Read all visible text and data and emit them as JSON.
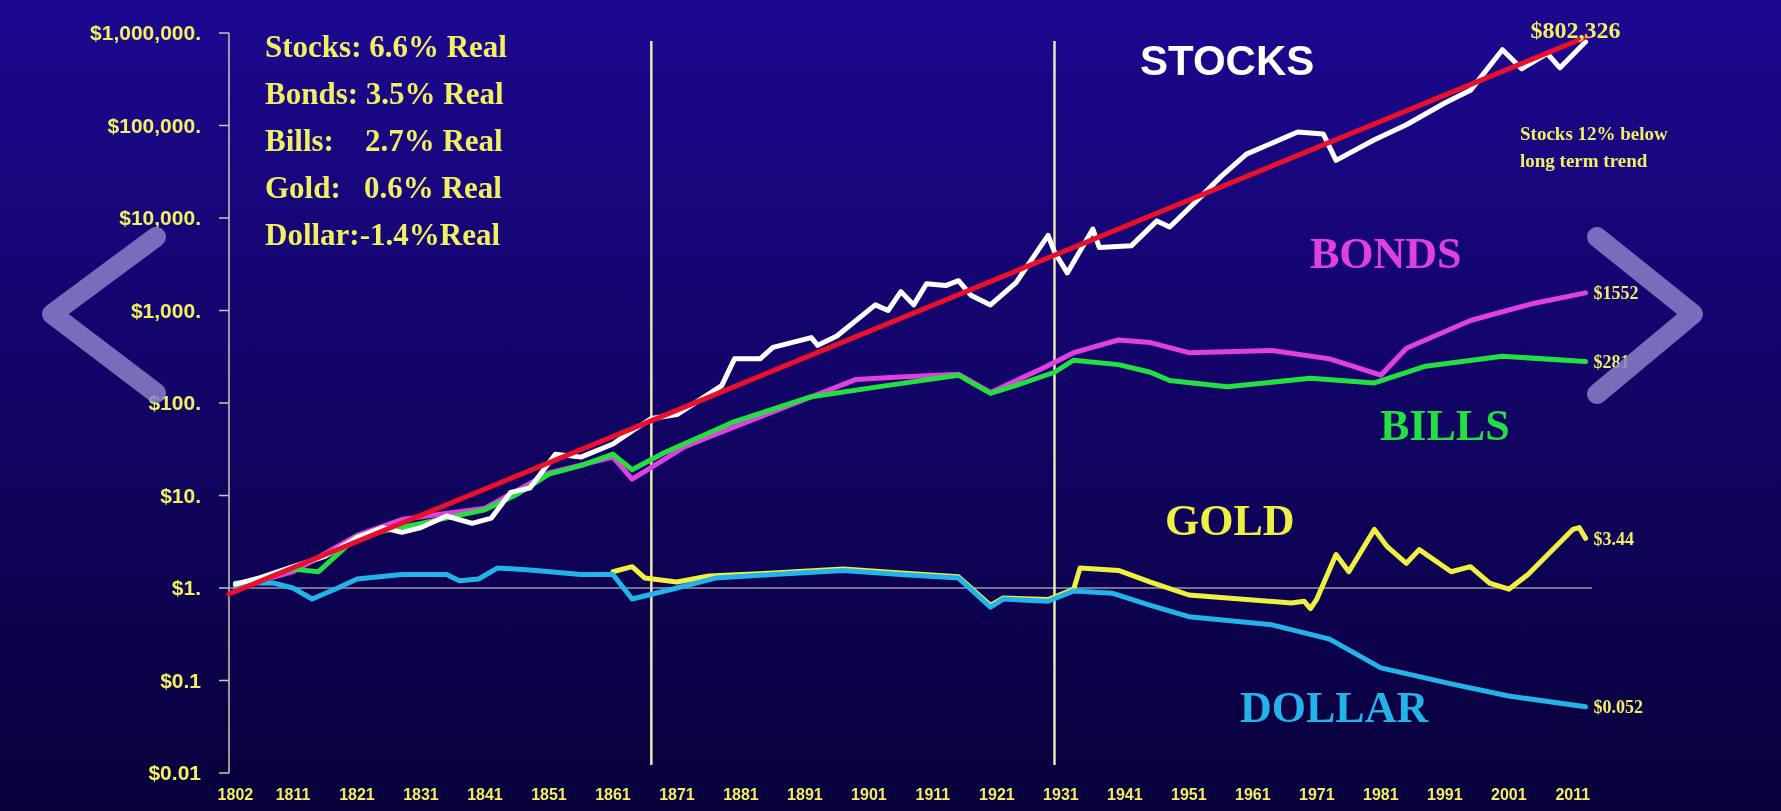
{
  "chart_data": {
    "type": "line",
    "log": "y",
    "xlim": [
      1801,
      2014
    ],
    "ylim": [
      0.01,
      1000000
    ],
    "xticks": [
      1802,
      1811,
      1821,
      1831,
      1841,
      1851,
      1861,
      1871,
      1881,
      1891,
      1901,
      1911,
      1921,
      1931,
      1941,
      1951,
      1961,
      1971,
      1981,
      1991,
      2001,
      2011
    ],
    "yticks": [
      {
        "value": 0.01,
        "label": "$0.01"
      },
      {
        "value": 0.1,
        "label": "$0.1"
      },
      {
        "value": 1,
        "label": "$1."
      },
      {
        "value": 10,
        "label": "$10."
      },
      {
        "value": 100,
        "label": "$100."
      },
      {
        "value": 1000,
        "label": "$1,000."
      },
      {
        "value": 10000,
        "label": "$10,000."
      },
      {
        "value": 100000,
        "label": "$100,000."
      },
      {
        "value": 1000000,
        "label": "$1,000,000."
      }
    ],
    "grid": false,
    "series": [
      {
        "name": "BONDS",
        "color": "#e040e0",
        "x": [
          1802,
          1811,
          1821,
          1828,
          1841,
          1851,
          1861,
          1864,
          1872,
          1876,
          1899,
          1905,
          1915,
          1920,
          1928,
          1933,
          1940,
          1945,
          1951,
          1964,
          1973,
          1981,
          1985,
          1995,
          2005,
          2013
        ],
        "values": [
          1.0,
          1.5,
          3.7,
          5.5,
          7.3,
          17.5,
          26,
          15,
          33,
          43,
          180,
          190,
          205,
          130,
          235,
          350,
          480,
          450,
          350,
          370,
          300,
          200,
          390,
          780,
          1200,
          1552
        ],
        "value_labels": [
          null,
          null,
          null,
          null,
          null,
          null,
          null,
          null,
          null,
          null,
          null,
          null,
          null,
          null,
          null,
          null,
          null,
          null,
          null,
          null,
          null,
          null,
          null,
          null,
          null,
          "$1552"
        ]
      },
      {
        "name": "BILLS",
        "color": "#22e040",
        "x": [
          1802,
          1811,
          1815,
          1821,
          1831,
          1841,
          1846,
          1851,
          1856,
          1861,
          1864,
          1869,
          1880,
          1892,
          1904,
          1915,
          1920,
          1924,
          1930,
          1933,
          1940,
          1945,
          1948,
          1957,
          1970,
          1980,
          1988,
          2000,
          2013
        ],
        "values": [
          1.07,
          1.6,
          1.5,
          3.6,
          5,
          7,
          10.3,
          17,
          21,
          28,
          19,
          29,
          63,
          117,
          155,
          200,
          127,
          155,
          215,
          290,
          260,
          215,
          175,
          150,
          185,
          165,
          250,
          320,
          281
        ],
        "value_labels": [
          null,
          null,
          null,
          null,
          null,
          null,
          null,
          null,
          null,
          null,
          null,
          null,
          null,
          null,
          null,
          null,
          null,
          null,
          null,
          null,
          null,
          null,
          null,
          null,
          null,
          null,
          null,
          null,
          "$281"
        ]
      },
      {
        "name": "GOLD",
        "color": "#f0f040",
        "x": [
          1861,
          1864,
          1866,
          1871,
          1876,
          1886,
          1897,
          1906,
          1915,
          1920,
          1922,
          1929,
          1933,
          1934,
          1940,
          1945,
          1951,
          1967,
          1969,
          1970,
          1971,
          1974,
          1976,
          1980,
          1982,
          1985,
          1987,
          1992,
          1995,
          1998,
          2001,
          2004,
          2011,
          2012,
          2013
        ],
        "values": [
          1.5,
          1.7,
          1.28,
          1.16,
          1.35,
          1.45,
          1.6,
          1.45,
          1.32,
          0.65,
          0.78,
          0.75,
          0.97,
          1.65,
          1.55,
          1.16,
          0.84,
          0.69,
          0.72,
          0.6,
          0.76,
          2.3,
          1.5,
          4.3,
          2.8,
          1.85,
          2.6,
          1.5,
          1.7,
          1.13,
          0.97,
          1.4,
          4.3,
          4.5,
          3.44
        ],
        "value_labels": [
          null,
          null,
          null,
          null,
          null,
          null,
          null,
          null,
          null,
          null,
          null,
          null,
          null,
          null,
          null,
          null,
          null,
          null,
          null,
          null,
          null,
          null,
          null,
          null,
          null,
          null,
          null,
          null,
          null,
          null,
          null,
          null,
          null,
          null,
          "$3.44"
        ]
      },
      {
        "name": "DOLLAR",
        "color": "#22b4e8",
        "x": [
          1802,
          1808,
          1811,
          1814,
          1818,
          1821,
          1828,
          1835,
          1837,
          1840,
          1843,
          1849,
          1856,
          1861,
          1864,
          1871,
          1877,
          1886,
          1897,
          1906,
          1915,
          1920,
          1922,
          1929,
          1933,
          1939,
          1945,
          1951,
          1964,
          1973,
          1981,
          1992,
          2001,
          2013
        ],
        "values": [
          1.13,
          1.13,
          1.0,
          0.76,
          1.0,
          1.25,
          1.4,
          1.4,
          1.2,
          1.25,
          1.65,
          1.55,
          1.4,
          1.4,
          0.76,
          1.0,
          1.28,
          1.4,
          1.55,
          1.4,
          1.28,
          0.62,
          0.76,
          0.72,
          0.93,
          0.88,
          0.65,
          0.49,
          0.4,
          0.28,
          0.137,
          0.092,
          0.068,
          0.052
        ],
        "value_labels": [
          null,
          null,
          null,
          null,
          null,
          null,
          null,
          null,
          null,
          null,
          null,
          null,
          null,
          null,
          null,
          null,
          null,
          null,
          null,
          null,
          null,
          null,
          null,
          null,
          null,
          null,
          null,
          null,
          null,
          null,
          null,
          null,
          null,
          "$0.052"
        ]
      },
      {
        "name": "STOCKS",
        "color": "#ffffff",
        "x": [
          1802,
          1806,
          1811,
          1816,
          1821,
          1825,
          1828,
          1831,
          1835,
          1839,
          1842,
          1845,
          1848,
          1852,
          1856,
          1861,
          1864,
          1867,
          1871,
          1878,
          1880,
          1884,
          1886,
          1892,
          1893,
          1896,
          1902,
          1904,
          1906,
          1908,
          1910,
          1913,
          1915,
          1917,
          1920,
          1924,
          1929,
          1930,
          1932,
          1936,
          1937,
          1942,
          1946,
          1948,
          1952,
          1956,
          1960,
          1968,
          1972,
          1974,
          1980,
          1985,
          1991,
          1995,
          2000,
          2003,
          2007,
          2009,
          2013
        ],
        "values": [
          1.1,
          1.3,
          1.7,
          2.2,
          3.5,
          4.5,
          4.0,
          4.5,
          6,
          5,
          5.7,
          10.8,
          12,
          28,
          26,
          36,
          50,
          68,
          75,
          154,
          300,
          300,
          400,
          510,
          420,
          530,
          1150,
          1000,
          1600,
          1150,
          1950,
          1860,
          2100,
          1450,
          1150,
          2000,
          6500,
          4300,
          2550,
          7600,
          4800,
          5000,
          9300,
          8000,
          14800,
          28000,
          49000,
          85000,
          81000,
          42000,
          70000,
          102000,
          175000,
          240000,
          660000,
          410000,
          600000,
          420000,
          802326
        ],
        "value_labels": [
          null,
          null,
          null,
          null,
          null,
          null,
          null,
          null,
          null,
          null,
          null,
          null,
          null,
          null,
          null,
          null,
          null,
          null,
          null,
          null,
          null,
          null,
          null,
          null,
          null,
          null,
          null,
          null,
          null,
          null,
          null,
          null,
          null,
          null,
          null,
          null,
          null,
          null,
          null,
          null,
          null,
          null,
          null,
          null,
          null,
          null,
          null,
          null,
          null,
          null,
          null,
          null,
          null,
          null,
          null,
          null,
          null,
          null,
          "$802,326"
        ]
      },
      {
        "type": "line",
        "color": "#e8102a",
        "x": [
          1801,
          2013
        ],
        "values": [
          0.86,
          900000
        ]
      }
    ],
    "ref_lines": [
      {
        "axis": "y",
        "value": 1,
        "color": "#9a9aa8"
      },
      {
        "axis": "x",
        "value": 1867,
        "color": "#e8e8b0"
      },
      {
        "axis": "x",
        "value": 1930,
        "color": "#e8e8b0"
      }
    ],
    "annotations": [
      "Stocks: 6.6% Real",
      "Bonds: 3.5% Real",
      "Bills:    2.7% Real",
      "Gold:   0.6% Real",
      "Dollar:-1.4%Real",
      "Stocks 12% below long term trend"
    ]
  }
}
